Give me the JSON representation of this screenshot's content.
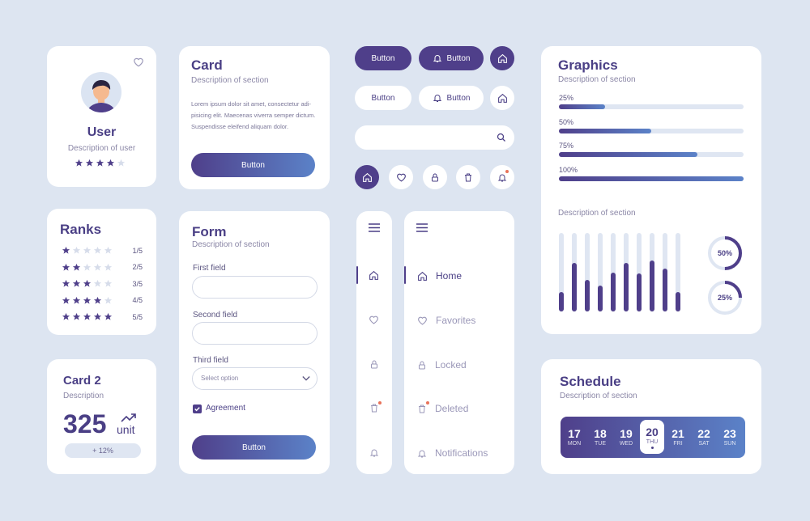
{
  "colors": {
    "primary": "#4f3f8a",
    "accent": "#5b82c8",
    "track": "#dfe6f2",
    "bg": "#dde5f1",
    "notify": "#e8735a"
  },
  "user": {
    "name": "User",
    "desc": "Description of user",
    "rating": 4,
    "icon": "heart-outline-icon"
  },
  "card": {
    "title": "Card",
    "desc": "Description of section",
    "lorem": "Lorem ipsum dolor sit amet, consectetur adi-pisicing elit. Maecenas viverra semper dictum. Suspendisse eleifend aliquam dolor.",
    "button": "Button"
  },
  "buttons": {
    "b1": "Button",
    "b2": "Button",
    "b3": "Button",
    "b4": "Button"
  },
  "search": {
    "placeholder": ""
  },
  "ranks": {
    "title": "Ranks",
    "rows": [
      {
        "filled": 1,
        "label": "1/5"
      },
      {
        "filled": 2,
        "label": "2/5"
      },
      {
        "filled": 3,
        "label": "3/5"
      },
      {
        "filled": 4,
        "label": "4/5"
      },
      {
        "filled": 5,
        "label": "5/5"
      }
    ]
  },
  "form": {
    "title": "Form",
    "desc": "Description of section",
    "first_label": "First field",
    "second_label": "Second field",
    "third_label": "Third field",
    "select_placeholder": "Select option",
    "agreement": "Agreement",
    "agreement_checked": true,
    "button": "Button"
  },
  "card2": {
    "title": "Card 2",
    "desc": "Description",
    "value": "325",
    "unit": "unit",
    "badge": "+ 12%"
  },
  "nav": {
    "items": [
      {
        "label": "Home",
        "icon": "home-icon"
      },
      {
        "label": "Favorites",
        "icon": "heart-icon"
      },
      {
        "label": "Locked",
        "icon": "lock-icon"
      },
      {
        "label": "Deleted",
        "icon": "trash-icon"
      },
      {
        "label": "Notifications",
        "icon": "bell-icon"
      }
    ]
  },
  "graphics": {
    "title": "Graphics",
    "desc": "Description of section",
    "progress": [
      {
        "label": "25%",
        "value": 25
      },
      {
        "label": "50%",
        "value": 50
      },
      {
        "label": "75%",
        "value": 75
      },
      {
        "label": "100%",
        "value": 100
      }
    ],
    "desc2": "Description of section"
  },
  "chart_data": [
    {
      "type": "bar",
      "values": [
        25,
        62,
        40,
        33,
        50,
        62,
        48,
        65,
        55,
        25
      ],
      "ylim": [
        0,
        100
      ]
    },
    {
      "type": "pie",
      "values": [
        50
      ],
      "labels": [
        "50%"
      ]
    },
    {
      "type": "pie",
      "values": [
        25
      ],
      "labels": [
        "25%"
      ]
    }
  ],
  "schedule": {
    "title": "Schedule",
    "desc": "Description of section",
    "days": [
      {
        "n": "17",
        "w": "MON"
      },
      {
        "n": "18",
        "w": "TUE"
      },
      {
        "n": "19",
        "w": "WED"
      },
      {
        "n": "20",
        "w": "THU",
        "active": true
      },
      {
        "n": "21",
        "w": "FRI"
      },
      {
        "n": "22",
        "w": "SAT"
      },
      {
        "n": "23",
        "w": "SUN"
      }
    ]
  }
}
